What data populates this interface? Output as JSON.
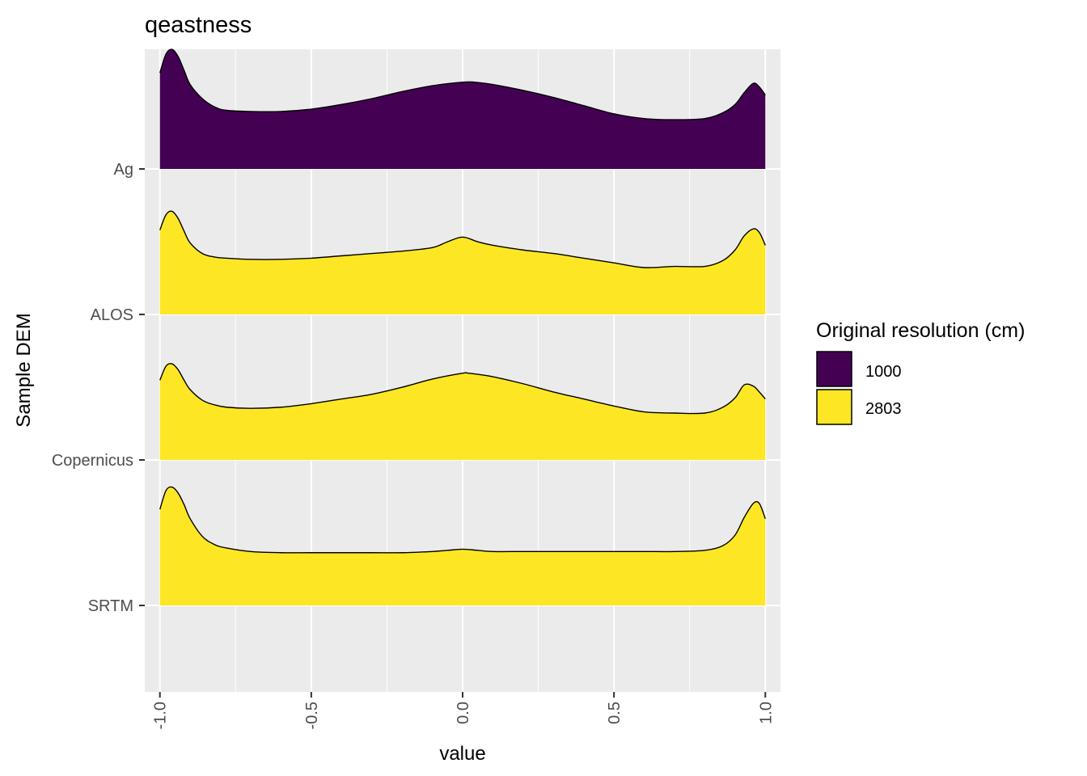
{
  "chart_data": {
    "type": "area",
    "subtype": "ridgeline-density",
    "title": "qeastness",
    "xlabel": "value",
    "ylabel": "Sample DEM",
    "xlim": [
      -1.05,
      1.05
    ],
    "x_ticks": [
      -1.0,
      -0.5,
      0.0,
      0.5,
      1.0
    ],
    "x_tick_labels": [
      "-1.0",
      "-0.5",
      "0.0",
      "0.5",
      "1.0"
    ],
    "categories": [
      "Ag",
      "ALOS",
      "Copernicus",
      "SRTM"
    ],
    "grid": true,
    "legend": {
      "title": "Original resolution (cm)",
      "position": "right",
      "entries": [
        {
          "label": "1000",
          "color": "#440154"
        },
        {
          "label": "2803",
          "color": "#FDE725"
        }
      ]
    },
    "series": [
      {
        "category": "Ag",
        "resolution": "1000",
        "color": "#440154",
        "x": [
          -1.0,
          -0.98,
          -0.96,
          -0.94,
          -0.92,
          -0.9,
          -0.86,
          -0.82,
          -0.78,
          -0.7,
          -0.6,
          -0.5,
          -0.4,
          -0.3,
          -0.2,
          -0.1,
          0.0,
          0.04,
          0.1,
          0.2,
          0.3,
          0.4,
          0.5,
          0.6,
          0.7,
          0.8,
          0.86,
          0.9,
          0.93,
          0.96,
          0.98,
          1.0
        ],
        "density": [
          0.82,
          0.98,
          1.02,
          0.96,
          0.84,
          0.72,
          0.6,
          0.53,
          0.5,
          0.49,
          0.49,
          0.51,
          0.55,
          0.6,
          0.66,
          0.71,
          0.74,
          0.74,
          0.72,
          0.67,
          0.61,
          0.54,
          0.47,
          0.43,
          0.42,
          0.43,
          0.48,
          0.55,
          0.65,
          0.73,
          0.7,
          0.63
        ]
      },
      {
        "category": "ALOS",
        "resolution": "2803",
        "color": "#FDE725",
        "x": [
          -1.0,
          -0.98,
          -0.96,
          -0.94,
          -0.92,
          -0.9,
          -0.86,
          -0.82,
          -0.78,
          -0.7,
          -0.6,
          -0.5,
          -0.4,
          -0.3,
          -0.2,
          -0.1,
          -0.05,
          0.0,
          0.05,
          0.1,
          0.2,
          0.3,
          0.4,
          0.5,
          0.6,
          0.7,
          0.8,
          0.86,
          0.9,
          0.93,
          0.96,
          0.98,
          1.0
        ],
        "density": [
          0.72,
          0.85,
          0.88,
          0.82,
          0.71,
          0.61,
          0.52,
          0.49,
          0.48,
          0.47,
          0.47,
          0.48,
          0.5,
          0.52,
          0.54,
          0.57,
          0.62,
          0.66,
          0.62,
          0.59,
          0.55,
          0.52,
          0.48,
          0.44,
          0.4,
          0.41,
          0.41,
          0.46,
          0.55,
          0.67,
          0.73,
          0.7,
          0.59
        ]
      },
      {
        "category": "Copernicus",
        "resolution": "2803",
        "color": "#FDE725",
        "x": [
          -1.0,
          -0.98,
          -0.96,
          -0.94,
          -0.92,
          -0.9,
          -0.86,
          -0.82,
          -0.78,
          -0.7,
          -0.6,
          -0.5,
          -0.4,
          -0.3,
          -0.2,
          -0.1,
          0.0,
          0.02,
          0.1,
          0.2,
          0.3,
          0.4,
          0.5,
          0.6,
          0.7,
          0.8,
          0.86,
          0.9,
          0.93,
          0.96,
          0.98,
          1.0
        ],
        "density": [
          0.68,
          0.8,
          0.82,
          0.77,
          0.68,
          0.6,
          0.51,
          0.47,
          0.45,
          0.44,
          0.45,
          0.48,
          0.52,
          0.56,
          0.62,
          0.69,
          0.74,
          0.74,
          0.71,
          0.65,
          0.58,
          0.52,
          0.46,
          0.41,
          0.4,
          0.4,
          0.45,
          0.53,
          0.64,
          0.63,
          0.58,
          0.52
        ]
      },
      {
        "category": "SRTM",
        "resolution": "2803",
        "color": "#FDE725",
        "x": [
          -1.0,
          -0.98,
          -0.96,
          -0.94,
          -0.92,
          -0.9,
          -0.86,
          -0.82,
          -0.78,
          -0.7,
          -0.6,
          -0.5,
          -0.4,
          -0.3,
          -0.2,
          -0.1,
          -0.05,
          0.0,
          0.05,
          0.1,
          0.2,
          0.3,
          0.4,
          0.5,
          0.6,
          0.7,
          0.8,
          0.86,
          0.9,
          0.93,
          0.96,
          0.98,
          1.0
        ],
        "density": [
          0.82,
          0.98,
          1.01,
          0.96,
          0.86,
          0.74,
          0.59,
          0.52,
          0.49,
          0.46,
          0.45,
          0.45,
          0.45,
          0.45,
          0.45,
          0.46,
          0.47,
          0.48,
          0.47,
          0.46,
          0.46,
          0.46,
          0.46,
          0.46,
          0.46,
          0.46,
          0.47,
          0.51,
          0.6,
          0.75,
          0.87,
          0.87,
          0.74
        ]
      }
    ]
  }
}
